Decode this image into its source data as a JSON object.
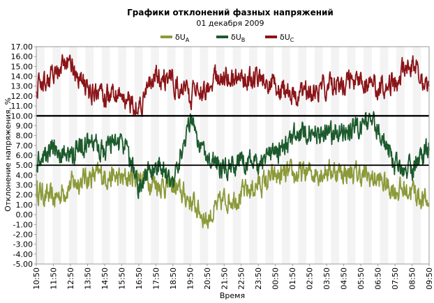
{
  "chart_data": {
    "type": "line",
    "title": "Графики отклонений фазных напряжений",
    "subtitle": "01 декабря 2009",
    "xlabel": "Время",
    "ylabel": "Отклонение напряжения, %",
    "ylim": [
      -5,
      17
    ],
    "y_ticks": [
      "17.00",
      "16.00",
      "15.00",
      "14.00",
      "13.00",
      "12.00",
      "11.00",
      "10.00",
      "9.00",
      "8.00",
      "7.00",
      "6.00",
      "5.00",
      "4.00",
      "3.00",
      "2.00",
      "1.00",
      "0.00",
      "-1.00",
      "-2.00",
      "-3.00",
      "-4.00",
      "-5.00"
    ],
    "categories": [
      "10:50",
      "11:50",
      "12:50",
      "13:50",
      "14:50",
      "15:50",
      "16:50",
      "17:50",
      "18:50",
      "19:50",
      "20:50",
      "21:50",
      "22:50",
      "23:50",
      "00:50",
      "01:50",
      "02:50",
      "03:50",
      "04:50",
      "05:50",
      "06:50",
      "07:50",
      "08:50",
      "09:50"
    ],
    "reference_lines": [
      10,
      5
    ],
    "grid": false,
    "legend_position": "top",
    "series": [
      {
        "name": "δU_A",
        "legend_main": "δU",
        "legend_sub": "A",
        "color": "#8c9a3a",
        "values": [
          2.5,
          1.5,
          3.0,
          3.8,
          4.0,
          3.5,
          4.0,
          3.2,
          2.8,
          1.5,
          -0.5,
          1.5,
          2.0,
          3.0,
          3.8,
          4.0,
          4.2,
          4.5,
          4.3,
          4.0,
          3.5,
          2.5,
          2.5,
          1.0
        ]
      },
      {
        "name": "δU_B",
        "legend_main": "δU",
        "legend_sub": "B",
        "color": "#1c5a2c",
        "values": [
          5.0,
          6.5,
          6.0,
          7.0,
          6.5,
          7.5,
          3.0,
          5.0,
          3.5,
          9.5,
          6.0,
          4.5,
          5.5,
          5.0,
          6.0,
          8.0,
          8.5,
          8.0,
          8.5,
          9.0,
          9.0,
          5.0,
          4.5,
          6.5
        ]
      },
      {
        "name": "δU_C",
        "legend_main": "δU",
        "legend_sub": "C",
        "color": "#8b1418",
        "values": [
          13.0,
          14.0,
          15.5,
          12.5,
          12.0,
          12.0,
          11.0,
          14.0,
          13.5,
          12.0,
          13.0,
          14.0,
          14.0,
          13.5,
          13.0,
          12.0,
          12.5,
          13.0,
          13.5,
          14.0,
          13.0,
          13.5,
          15.5,
          13.0
        ]
      }
    ]
  }
}
